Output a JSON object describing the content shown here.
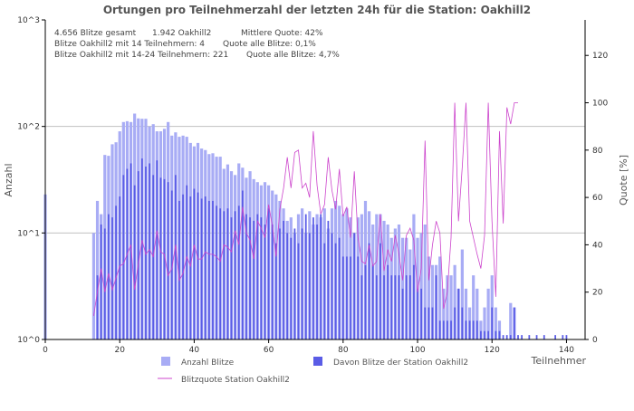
{
  "chart_data": {
    "type": "bar",
    "title": "Ortungen pro Teilnehmerzahl der letzten 24h für die Station: Oakhill2",
    "xlabel": "Teilnehmer",
    "ylabel": "Anzahl",
    "y2label": "Quote [%]",
    "xlim": [
      0,
      145
    ],
    "y_scale": "log",
    "ylim": [
      1,
      1000
    ],
    "y2lim": [
      0,
      135
    ],
    "x_ticks": [
      0,
      20,
      40,
      60,
      80,
      100,
      120,
      140
    ],
    "y_ticks": [
      "10^0",
      "10^1",
      "10^2",
      "10^3"
    ],
    "y2_ticks": [
      0,
      20,
      40,
      60,
      80,
      100,
      120
    ],
    "grid": true,
    "annotations": [
      {
        "left": "4.656 Blitze gesamt",
        "right": "1.942 Oakhill2",
        "extra": "Mittlere Quote: 42%"
      },
      {
        "left": "Blitze Oakhill2 mit 14 Teilnehmern: 4",
        "right": "Quote alle Blitze: 0,1%",
        "extra": ""
      },
      {
        "left": "Blitze Oakhill2 mit 14-24 Teilnehmern: 221",
        "right": "Quote alle Blitze: 4,7%",
        "extra": ""
      }
    ],
    "legend": [
      "Anzahl Blitze",
      "Davon Blitze der Station Oakhill2",
      "Blitzquote Station Oakhill2"
    ],
    "legend_position": "bottom",
    "colors": {
      "total": "#a8acf5",
      "station": "#5a5ce6",
      "quota": "#cc44cc",
      "grid": "#c0c0c0",
      "axis": "#000000"
    },
    "series": [
      {
        "name": "Anzahl Blitze",
        "x": [
          0,
          13,
          14,
          15,
          16,
          17,
          18,
          19,
          20,
          21,
          22,
          23,
          24,
          25,
          26,
          27,
          28,
          29,
          30,
          31,
          32,
          33,
          34,
          35,
          36,
          37,
          38,
          39,
          40,
          41,
          42,
          43,
          44,
          45,
          46,
          47,
          48,
          49,
          50,
          51,
          52,
          53,
          54,
          55,
          56,
          57,
          58,
          59,
          60,
          61,
          62,
          63,
          64,
          65,
          66,
          67,
          68,
          69,
          70,
          71,
          72,
          73,
          74,
          75,
          76,
          77,
          78,
          79,
          80,
          81,
          82,
          83,
          84,
          85,
          86,
          87,
          88,
          89,
          90,
          91,
          92,
          93,
          94,
          95,
          96,
          97,
          98,
          99,
          100,
          101,
          102,
          103,
          104,
          105,
          106,
          107,
          108,
          109,
          110,
          111,
          112,
          113,
          114,
          115,
          116,
          117,
          118,
          119,
          120,
          121,
          122,
          123,
          124,
          125,
          126
        ],
        "values": [
          23,
          10,
          20,
          15,
          54,
          53,
          68,
          71,
          90,
          110,
          112,
          110,
          132,
          119,
          118,
          118,
          100,
          105,
          90,
          90,
          95,
          110,
          82,
          88,
          80,
          82,
          80,
          70,
          65,
          70,
          62,
          60,
          55,
          56,
          52,
          52,
          40,
          44,
          38,
          35,
          45,
          41,
          33,
          38,
          32,
          30,
          28,
          30,
          28,
          25,
          23,
          20,
          17,
          13,
          14,
          10,
          15,
          17,
          10,
          16,
          12,
          15,
          14,
          17,
          11,
          17,
          20,
          18,
          15,
          17,
          14,
          10,
          14,
          15,
          20,
          16,
          12,
          15,
          15,
          13,
          12,
          9,
          11,
          12,
          9,
          9,
          7,
          15,
          9,
          10,
          12,
          6,
          5,
          5,
          6,
          3,
          4,
          4,
          5,
          3,
          7,
          3,
          2,
          4,
          3,
          1.5,
          2,
          3,
          4,
          2,
          1.5,
          1,
          1,
          2.2,
          2
        ]
      },
      {
        "name": "Davon Blitze der Station Oakhill2",
        "x": [
          13,
          14,
          15,
          16,
          17,
          18,
          19,
          20,
          21,
          22,
          23,
          24,
          25,
          26,
          27,
          28,
          29,
          30,
          31,
          32,
          33,
          34,
          35,
          36,
          37,
          38,
          39,
          40,
          41,
          42,
          43,
          44,
          45,
          46,
          47,
          48,
          49,
          50,
          51,
          52,
          53,
          54,
          55,
          56,
          57,
          58,
          59,
          60,
          61,
          62,
          63,
          64,
          65,
          66,
          67,
          68,
          69,
          70,
          71,
          72,
          73,
          74,
          75,
          76,
          77,
          78,
          79,
          80,
          81,
          82,
          83,
          84,
          85,
          86,
          87,
          88,
          89,
          90,
          91,
          92,
          93,
          94,
          95,
          96,
          97,
          98,
          99,
          100,
          101,
          102,
          103,
          104,
          105,
          106,
          107,
          108,
          109,
          110,
          111,
          112,
          113,
          114,
          115,
          116,
          117,
          118,
          119,
          120,
          121,
          122,
          123,
          124,
          125,
          126,
          127,
          128,
          130,
          132,
          134,
          137,
          139,
          140
        ],
        "values": [
          1,
          4,
          12,
          11,
          15,
          14,
          18,
          22,
          35,
          40,
          45,
          28,
          38,
          50,
          42,
          45,
          35,
          48,
          33,
          32,
          30,
          25,
          35,
          20,
          23,
          28,
          22,
          26,
          24,
          21,
          22,
          20,
          20,
          18,
          17,
          16,
          17,
          14,
          16,
          18,
          25,
          15,
          14,
          13,
          15,
          14,
          12,
          17,
          12,
          8,
          11,
          13,
          10,
          9,
          11,
          8,
          11,
          15,
          10,
          14,
          12,
          15,
          8,
          13,
          10,
          8,
          9,
          6,
          6,
          6,
          10,
          6,
          4,
          5,
          8,
          5,
          4,
          8,
          4,
          5,
          4,
          4,
          4,
          3,
          4,
          4,
          5,
          3,
          3,
          2,
          2,
          2,
          4,
          1.5,
          1.5,
          1.5,
          1.5,
          2,
          3,
          2,
          1.5,
          1.5,
          1.5,
          1.5,
          1.2,
          1.2,
          1.2,
          2,
          1.2,
          1.2,
          1.1,
          1.1,
          1.1,
          2,
          1.1,
          1.1,
          1.1,
          1.1,
          1.1,
          1.1,
          1.1,
          1.1
        ]
      },
      {
        "name": "Blitzquote Station Oakhill2",
        "x": [
          13,
          14,
          15,
          16,
          17,
          18,
          19,
          20,
          21,
          22,
          23,
          24,
          25,
          26,
          27,
          28,
          29,
          30,
          31,
          32,
          33,
          34,
          35,
          36,
          37,
          38,
          39,
          40,
          41,
          42,
          43,
          44,
          45,
          46,
          47,
          48,
          49,
          50,
          51,
          52,
          53,
          54,
          55,
          56,
          57,
          58,
          59,
          60,
          61,
          62,
          63,
          64,
          65,
          66,
          67,
          68,
          69,
          70,
          71,
          72,
          73,
          74,
          75,
          76,
          77,
          78,
          79,
          80,
          81,
          82,
          83,
          84,
          85,
          86,
          87,
          88,
          89,
          90,
          91,
          92,
          93,
          94,
          95,
          96,
          97,
          98,
          99,
          100,
          101,
          102,
          103,
          104,
          105,
          106,
          107,
          108,
          109,
          110,
          111,
          112,
          113,
          114,
          115,
          116,
          117,
          118,
          119,
          120,
          121,
          122,
          123,
          124,
          125,
          126,
          127
        ],
        "values": [
          10,
          20,
          30,
          20,
          28,
          21,
          26,
          31,
          32,
          36,
          40,
          21,
          32,
          42,
          36,
          38,
          35,
          46,
          37,
          36,
          27,
          30,
          40,
          25,
          28,
          35,
          31,
          40,
          34,
          34,
          37,
          36,
          36,
          35,
          33,
          40,
          39,
          37,
          46,
          40,
          56,
          45,
          42,
          34,
          50,
          47,
          43,
          57,
          48,
          35,
          55,
          64,
          77,
          64,
          79,
          80,
          64,
          66,
          60,
          88,
          65,
          53,
          57,
          77,
          63,
          55,
          72,
          52,
          56,
          43,
          71,
          43,
          33,
          32,
          40,
          31,
          33,
          53,
          29,
          38,
          33,
          44,
          36,
          25,
          44,
          47,
          42,
          20,
          30,
          84,
          25,
          40,
          50,
          45,
          13,
          20,
          43,
          100,
          50,
          73,
          100,
          50,
          43,
          36,
          30,
          44,
          100,
          50,
          18,
          88,
          49,
          98,
          91,
          100,
          100
        ]
      }
    ]
  }
}
